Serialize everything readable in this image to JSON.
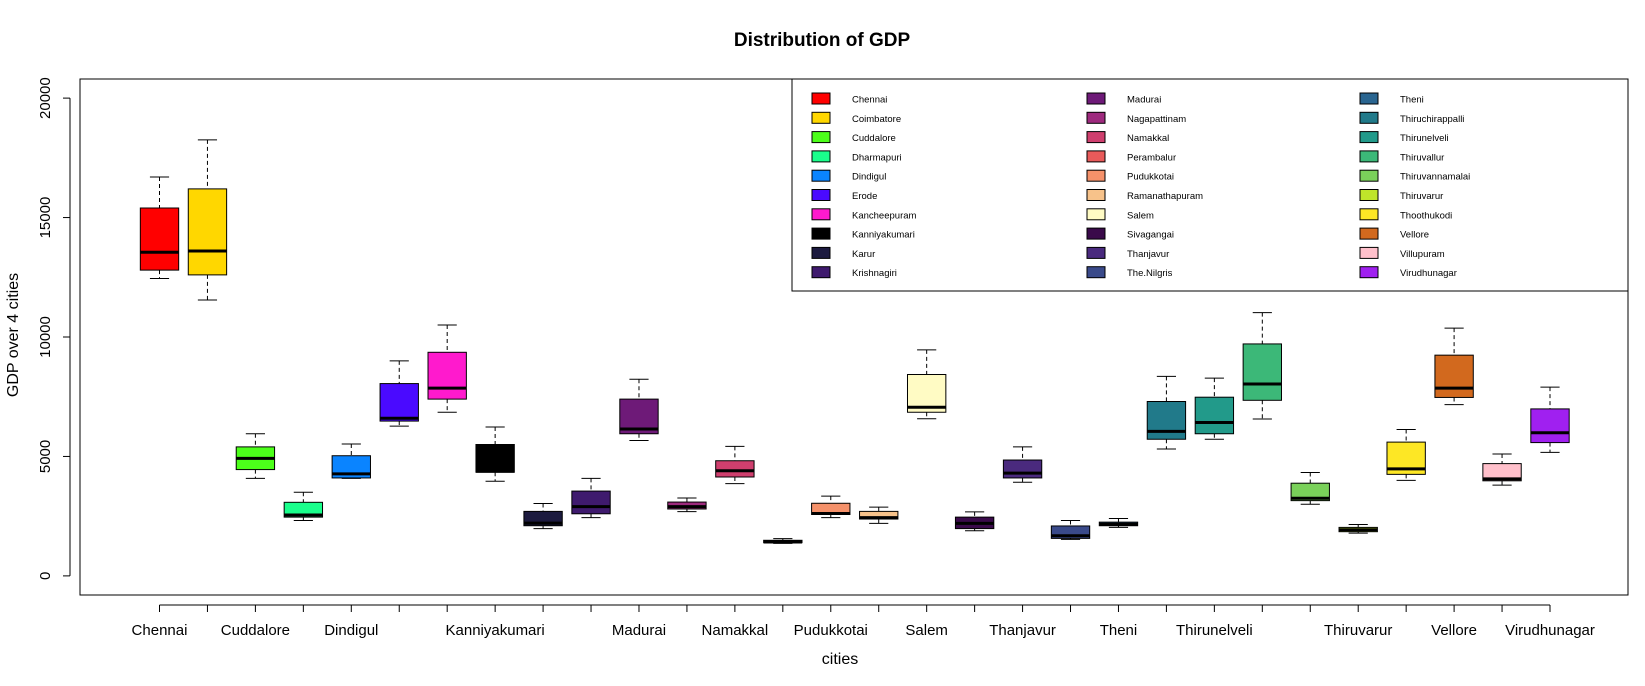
{
  "chart_data": {
    "type": "boxplot",
    "title": "Distribution of GDP",
    "xlabel": "cities",
    "ylabel": "GDP over 4 cities",
    "ylim": [
      0,
      20000
    ],
    "yticks": [
      0,
      5000,
      10000,
      15000,
      20000
    ],
    "ytick_labels": [
      "0",
      "5000",
      "10000",
      "15000",
      "20000"
    ],
    "shown_xtick_labels": [
      {
        "index": 0,
        "label": "Chennai"
      },
      {
        "index": 2,
        "label": "Cuddalore"
      },
      {
        "index": 4,
        "label": "Dindigul"
      },
      {
        "index": 7,
        "label": "Kanniyakumari"
      },
      {
        "index": 10,
        "label": "Madurai"
      },
      {
        "index": 12,
        "label": "Namakkal"
      },
      {
        "index": 14,
        "label": "Pudukkotai"
      },
      {
        "index": 16,
        "label": "Salem"
      },
      {
        "index": 18,
        "label": "Thanjavur"
      },
      {
        "index": 20,
        "label": "Theni"
      },
      {
        "index": 22,
        "label": "Thirunelveli"
      },
      {
        "index": 25,
        "label": "Thiruvarur"
      },
      {
        "index": 27,
        "label": "Vellore"
      },
      {
        "index": 29,
        "label": "Virudhunagar"
      }
    ],
    "legend": {
      "placement": "top-right",
      "columns": 3
    },
    "boxes": [
      {
        "name": "Chennai",
        "color": "#ff0000",
        "min": 12450,
        "q1": 12800,
        "median": 13550,
        "q3": 15400,
        "max": 16700
      },
      {
        "name": "Coimbatore",
        "color": "#ffd700",
        "min": 11550,
        "q1": 12600,
        "median": 13600,
        "q3": 16200,
        "max": 18250
      },
      {
        "name": "Cuddalore",
        "color": "#4cff1a",
        "min": 4080,
        "q1": 4450,
        "median": 4920,
        "q3": 5400,
        "max": 5950
      },
      {
        "name": "Dharmapuri",
        "color": "#1aff8c",
        "min": 2320,
        "q1": 2460,
        "median": 2550,
        "q3": 3080,
        "max": 3500
      },
      {
        "name": "Dindigul",
        "color": "#0a84ff",
        "min": 4080,
        "q1": 4100,
        "median": 4270,
        "q3": 5030,
        "max": 5520
      },
      {
        "name": "Erode",
        "color": "#4a0aff",
        "min": 6270,
        "q1": 6480,
        "median": 6600,
        "q3": 8050,
        "max": 9000
      },
      {
        "name": "Kancheepuram",
        "color": "#ff1acd",
        "min": 6850,
        "q1": 7400,
        "median": 7860,
        "q3": 9360,
        "max": 10500
      },
      {
        "name": "Kanniyakumari",
        "color": "#000000",
        "min": 3960,
        "q1": 4340,
        "median": 4380,
        "q3": 5500,
        "max": 6230
      },
      {
        "name": "Karur",
        "color": "#1c1a3f",
        "min": 1980,
        "q1": 2100,
        "median": 2210,
        "q3": 2700,
        "max": 3030
      },
      {
        "name": "Krishnagiri",
        "color": "#3f1a6e",
        "min": 2440,
        "q1": 2600,
        "median": 2900,
        "q3": 3550,
        "max": 4080
      },
      {
        "name": "Madurai",
        "color": "#6e1a78",
        "min": 5670,
        "q1": 5950,
        "median": 6150,
        "q3": 7400,
        "max": 8230
      },
      {
        "name": "Nagapattinam",
        "color": "#9e2a7e",
        "min": 2690,
        "q1": 2800,
        "median": 2900,
        "q3": 3090,
        "max": 3260
      },
      {
        "name": "Namakkal",
        "color": "#cf3f6e",
        "min": 3860,
        "q1": 4140,
        "median": 4400,
        "q3": 4820,
        "max": 5420
      },
      {
        "name": "Perambalur",
        "color": "#e85a5a",
        "min": 1360,
        "q1": 1390,
        "median": 1420,
        "q3": 1490,
        "max": 1560
      },
      {
        "name": "Pudukkotai",
        "color": "#f5916a",
        "min": 2440,
        "q1": 2570,
        "median": 2610,
        "q3": 3040,
        "max": 3340
      },
      {
        "name": "Ramanathapuram",
        "color": "#f7c28a",
        "min": 2200,
        "q1": 2380,
        "median": 2440,
        "q3": 2700,
        "max": 2880
      },
      {
        "name": "Salem",
        "color": "#fffbc4",
        "min": 6580,
        "q1": 6850,
        "median": 7060,
        "q3": 8430,
        "max": 9460
      },
      {
        "name": "Sivagangai",
        "color": "#3a0a4a",
        "min": 1890,
        "q1": 1980,
        "median": 2200,
        "q3": 2460,
        "max": 2680
      },
      {
        "name": "Thanjavur",
        "color": "#4a2a7e",
        "min": 3920,
        "q1": 4100,
        "median": 4300,
        "q3": 4850,
        "max": 5400
      },
      {
        "name": "The.Nilgris",
        "color": "#3a4a8a",
        "min": 1530,
        "q1": 1570,
        "median": 1680,
        "q3": 2090,
        "max": 2320
      },
      {
        "name": "Theni",
        "color": "#2a6590",
        "min": 2030,
        "q1": 2100,
        "median": 2160,
        "q3": 2250,
        "max": 2400
      },
      {
        "name": "Thiruchirappalli",
        "color": "#217a8a",
        "min": 5310,
        "q1": 5720,
        "median": 6050,
        "q3": 7300,
        "max": 8350
      },
      {
        "name": "Thirunelveli",
        "color": "#229a8a",
        "min": 5720,
        "q1": 5950,
        "median": 6420,
        "q3": 7480,
        "max": 8280
      },
      {
        "name": "Thiruvallur",
        "color": "#3cb878",
        "min": 6570,
        "q1": 7350,
        "median": 8030,
        "q3": 9710,
        "max": 11020
      },
      {
        "name": "Thiruvannamalai",
        "color": "#7ad15a",
        "min": 3000,
        "q1": 3150,
        "median": 3250,
        "q3": 3880,
        "max": 4330
      },
      {
        "name": "Thiruvarur",
        "color": "#bfe52a",
        "min": 1790,
        "q1": 1850,
        "median": 1930,
        "q3": 2030,
        "max": 2150
      },
      {
        "name": "Thoothukodi",
        "color": "#fde725",
        "min": 4000,
        "q1": 4250,
        "median": 4480,
        "q3": 5600,
        "max": 6130
      },
      {
        "name": "Vellore",
        "color": "#d2691e",
        "min": 7170,
        "q1": 7470,
        "median": 7860,
        "q3": 9240,
        "max": 10370
      },
      {
        "name": "Villupuram",
        "color": "#ffc0cb",
        "min": 3800,
        "q1": 3980,
        "median": 4060,
        "q3": 4700,
        "max": 5100
      },
      {
        "name": "Virudhunagar",
        "color": "#a020f0",
        "min": 5170,
        "q1": 5580,
        "median": 5990,
        "q3": 6990,
        "max": 7900
      }
    ]
  }
}
